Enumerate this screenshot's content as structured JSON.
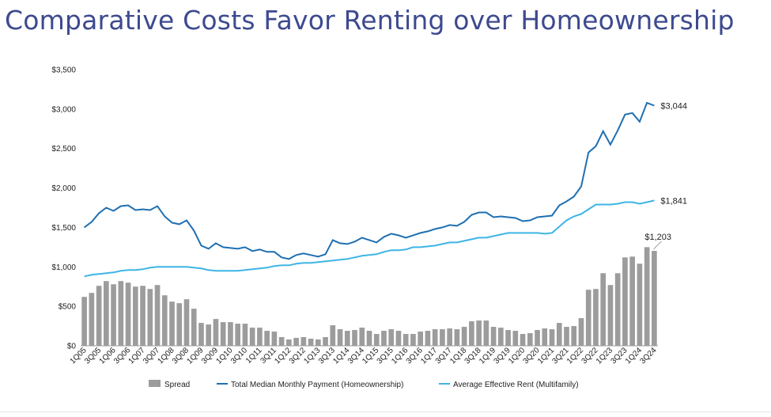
{
  "title": "Comparative Costs Favor Renting over Homeownership",
  "colors": {
    "title": "#3d4a8f",
    "spread": "#9c9c9c",
    "ownership": "#1f6fb2",
    "rent": "#3db5e6"
  },
  "chart_data": {
    "type": "bar",
    "xlabel": "",
    "ylabel": "",
    "ylim": [
      0,
      3500
    ],
    "y_ticks": [
      "$0",
      "$500",
      "$1,000",
      "$1,500",
      "$2,000",
      "$2,500",
      "$3,000",
      "$3,500"
    ],
    "grid": false,
    "legend_position": "bottom",
    "categories": [
      "1Q05",
      "2Q05",
      "3Q05",
      "4Q05",
      "1Q06",
      "2Q06",
      "3Q06",
      "4Q06",
      "1Q07",
      "2Q07",
      "3Q07",
      "4Q07",
      "1Q08",
      "2Q08",
      "3Q08",
      "4Q08",
      "1Q09",
      "2Q09",
      "3Q09",
      "4Q09",
      "1Q10",
      "2Q10",
      "3Q10",
      "4Q10",
      "1Q11",
      "2Q11",
      "3Q11",
      "4Q11",
      "1Q12",
      "2Q12",
      "3Q12",
      "4Q12",
      "1Q13",
      "2Q13",
      "3Q13",
      "4Q13",
      "1Q14",
      "2Q14",
      "3Q14",
      "4Q14",
      "1Q15",
      "2Q15",
      "3Q15",
      "4Q15",
      "1Q16",
      "2Q16",
      "3Q16",
      "4Q16",
      "1Q17",
      "2Q17",
      "3Q17",
      "4Q17",
      "1Q18",
      "2Q18",
      "3Q18",
      "4Q18",
      "1Q19",
      "2Q19",
      "3Q19",
      "4Q19",
      "1Q20",
      "2Q20",
      "3Q20",
      "4Q20",
      "1Q21",
      "2Q21",
      "3Q21",
      "4Q21",
      "1Q22",
      "2Q22",
      "3Q22",
      "4Q22",
      "1Q23",
      "2Q23",
      "3Q23",
      "4Q23",
      "1Q24",
      "2Q24",
      "3Q24"
    ],
    "x_tick_labels": [
      "1Q05",
      "3Q05",
      "1Q06",
      "3Q06",
      "1Q07",
      "3Q07",
      "1Q08",
      "3Q08",
      "1Q09",
      "3Q09",
      "1Q10",
      "3Q10",
      "1Q11",
      "3Q11",
      "1Q12",
      "3Q12",
      "1Q13",
      "3Q13",
      "1Q14",
      "3Q14",
      "1Q15",
      "3Q15",
      "1Q16",
      "3Q16",
      "1Q17",
      "3Q17",
      "1Q18",
      "3Q18",
      "1Q19",
      "3Q19",
      "1Q20",
      "3Q20",
      "1Q21",
      "3Q21",
      "1Q22",
      "3Q22",
      "1Q23",
      "3Q23",
      "1Q24",
      "3Q24"
    ],
    "series": [
      {
        "name": "Spread",
        "type": "bar",
        "values": [
          620,
          670,
          760,
          820,
          780,
          820,
          800,
          750,
          760,
          720,
          770,
          640,
          560,
          540,
          590,
          470,
          290,
          270,
          340,
          300,
          300,
          280,
          280,
          230,
          230,
          190,
          180,
          110,
          80,
          100,
          110,
          90,
          80,
          110,
          260,
          210,
          190,
          200,
          230,
          190,
          150,
          190,
          210,
          190,
          150,
          150,
          180,
          190,
          210,
          210,
          220,
          210,
          240,
          310,
          320,
          320,
          240,
          230,
          200,
          190,
          150,
          160,
          200,
          220,
          210,
          290,
          240,
          250,
          350,
          710,
          720,
          920,
          770,
          920,
          1120,
          1130,
          1040,
          1250,
          1203
        ]
      },
      {
        "name": "Total Median Monthly Payment (Homeownership)",
        "type": "line",
        "values": [
          1500,
          1570,
          1680,
          1750,
          1710,
          1770,
          1780,
          1720,
          1730,
          1720,
          1770,
          1640,
          1560,
          1540,
          1590,
          1460,
          1270,
          1230,
          1300,
          1250,
          1240,
          1230,
          1250,
          1200,
          1220,
          1190,
          1190,
          1120,
          1100,
          1150,
          1170,
          1150,
          1130,
          1160,
          1340,
          1300,
          1290,
          1320,
          1370,
          1340,
          1310,
          1380,
          1420,
          1400,
          1370,
          1400,
          1430,
          1450,
          1480,
          1500,
          1530,
          1520,
          1570,
          1660,
          1690,
          1690,
          1630,
          1640,
          1630,
          1620,
          1580,
          1590,
          1630,
          1640,
          1650,
          1780,
          1830,
          1890,
          2020,
          2450,
          2530,
          2720,
          2550,
          2730,
          2930,
          2950,
          2840,
          3080,
          3044
        ]
      },
      {
        "name": "Average Effective Rent (Multifamily)",
        "type": "line",
        "values": [
          880,
          900,
          910,
          920,
          930,
          950,
          960,
          960,
          970,
          990,
          1000,
          1000,
          1000,
          1000,
          1000,
          990,
          980,
          960,
          950,
          950,
          950,
          950,
          960,
          970,
          980,
          990,
          1010,
          1020,
          1020,
          1040,
          1050,
          1050,
          1060,
          1070,
          1080,
          1090,
          1100,
          1120,
          1140,
          1150,
          1160,
          1190,
          1210,
          1210,
          1220,
          1250,
          1250,
          1260,
          1270,
          1290,
          1310,
          1310,
          1330,
          1350,
          1370,
          1370,
          1390,
          1410,
          1430,
          1430,
          1430,
          1430,
          1430,
          1420,
          1430,
          1510,
          1590,
          1640,
          1670,
          1730,
          1790,
          1790,
          1790,
          1800,
          1820,
          1820,
          1800,
          1820,
          1841
        ]
      }
    ],
    "annotations": {
      "ownership_end": "$3,044",
      "rent_end": "$1,841",
      "spread_end": "$1,203"
    }
  }
}
